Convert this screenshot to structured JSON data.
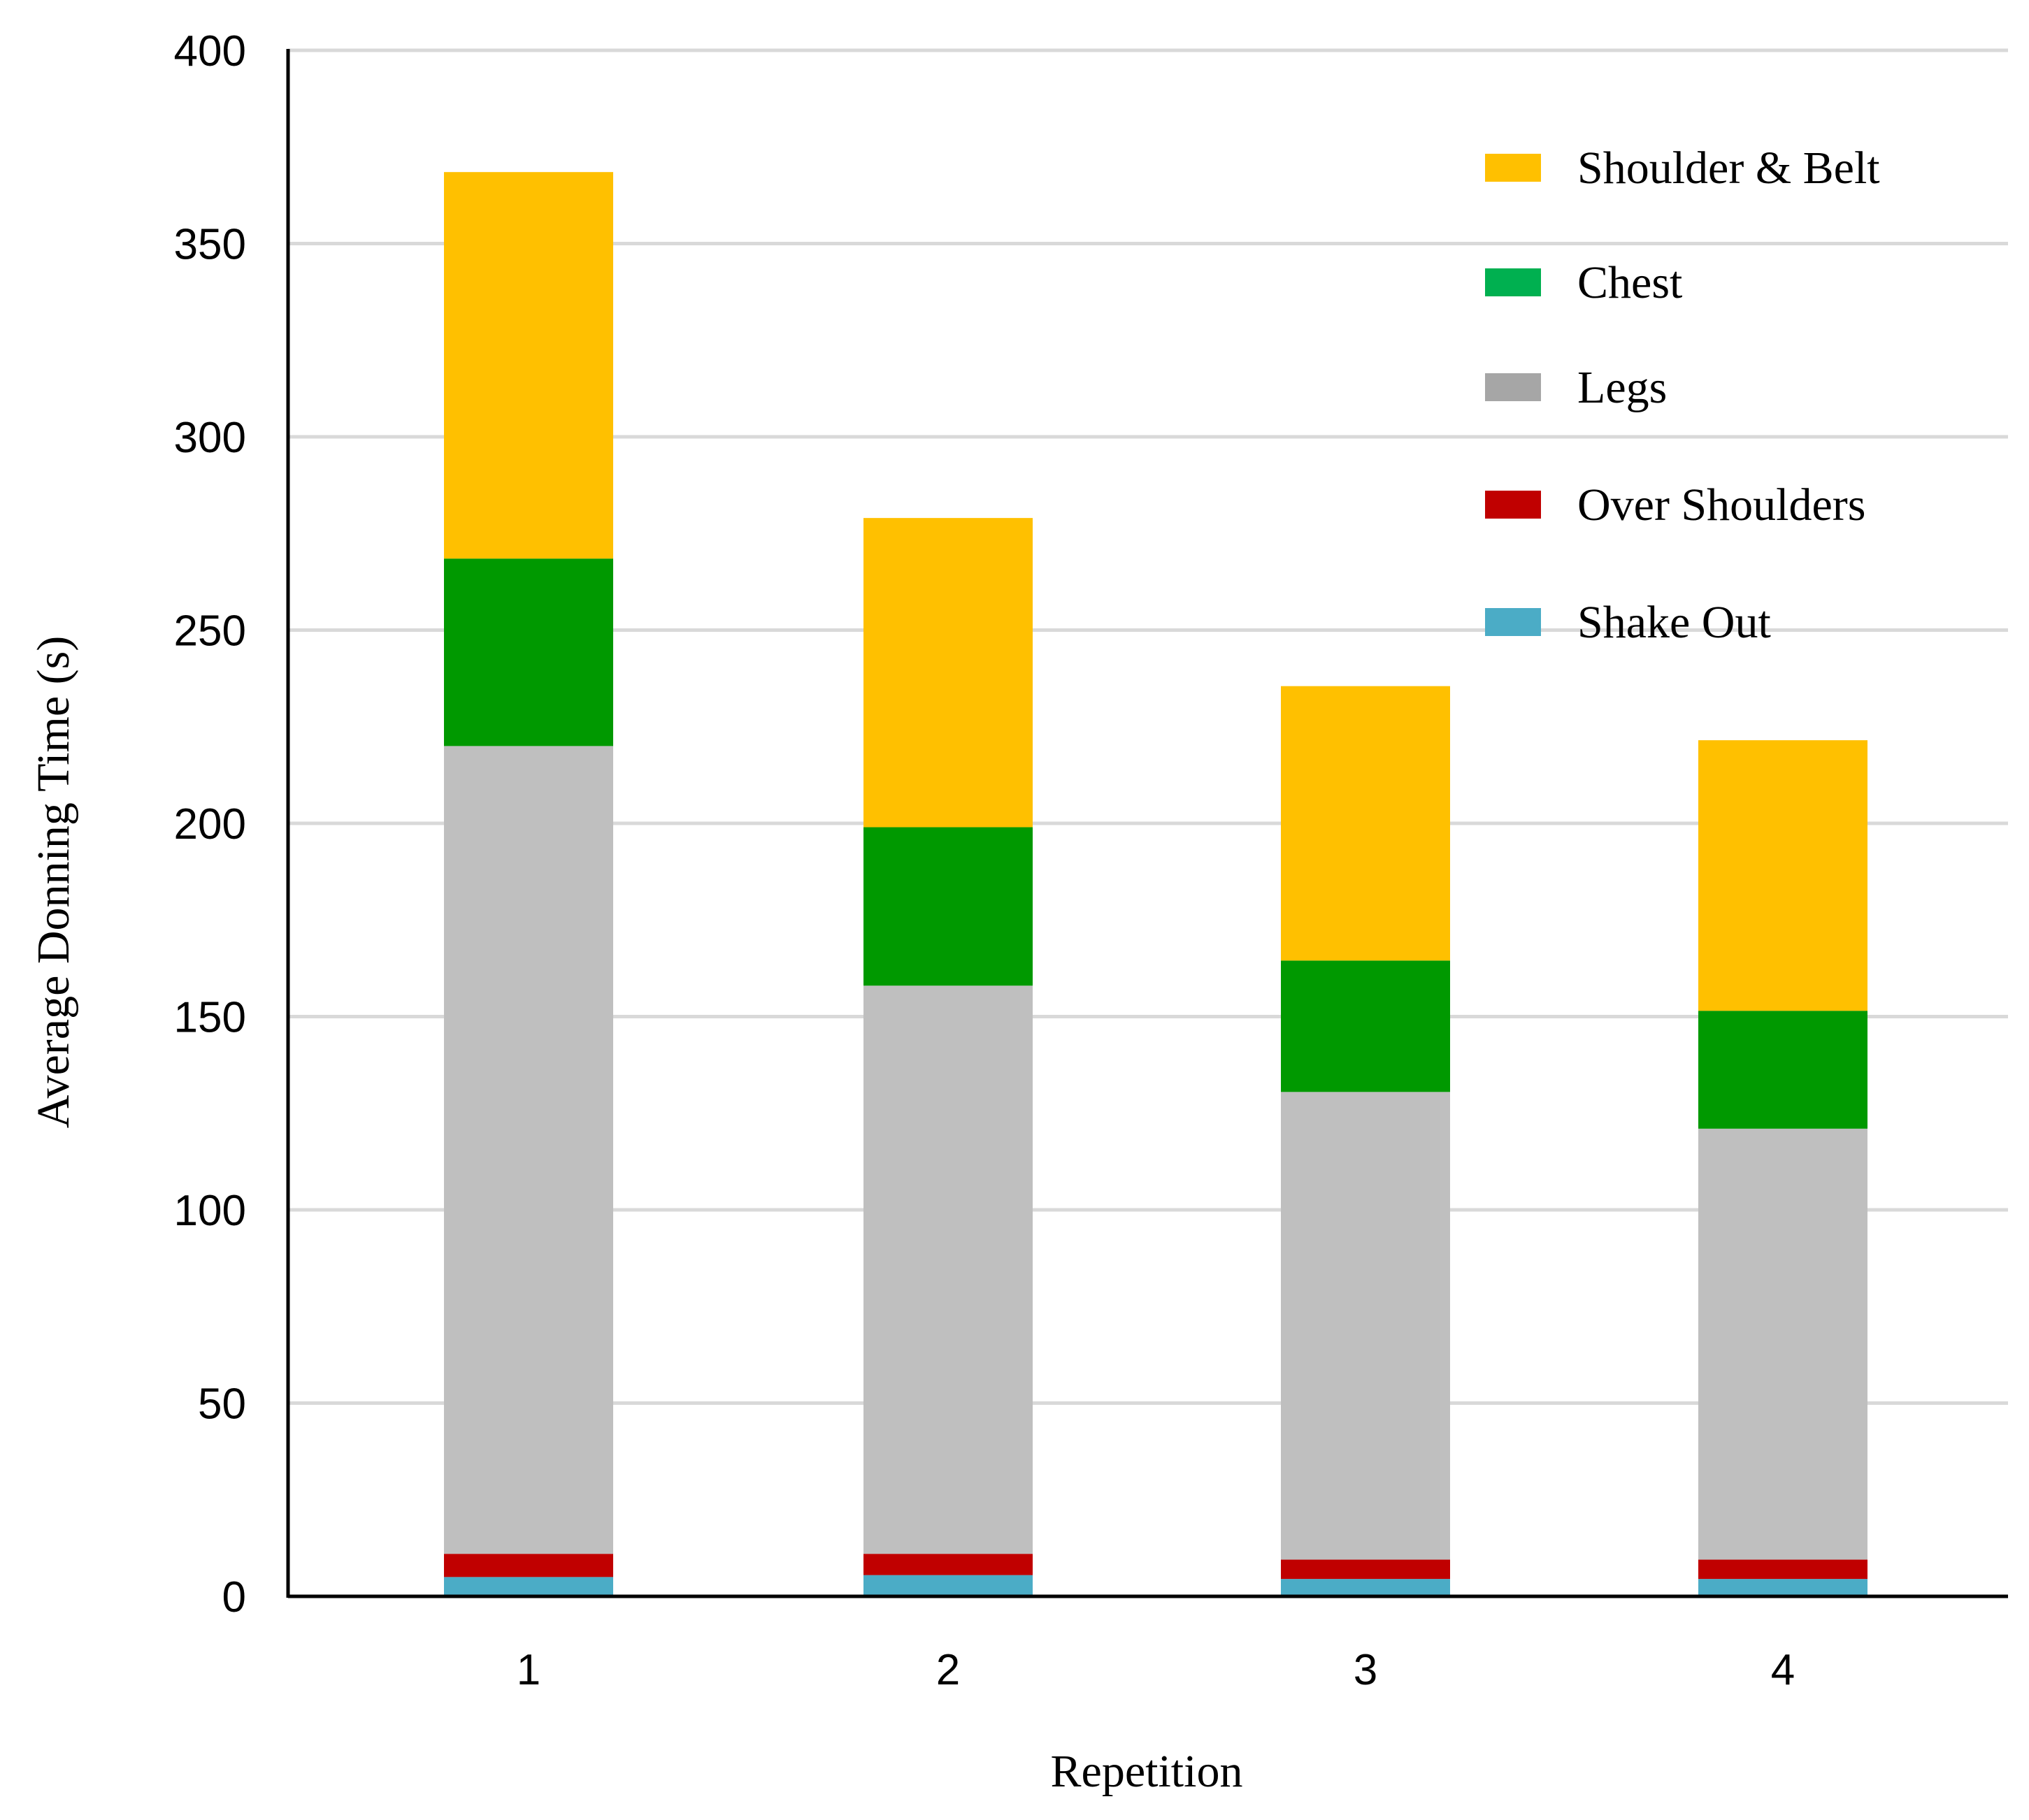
{
  "chart_data": {
    "type": "bar",
    "stacked": true,
    "categories": [
      "1",
      "2",
      "3",
      "4"
    ],
    "series": [
      {
        "name": "Shake Out",
        "color": "#4BACC6",
        "values": [
          5,
          5.5,
          4.5,
          4.5
        ]
      },
      {
        "name": "Over Shoulders",
        "color": "#C00000",
        "values": [
          6,
          5.5,
          5,
          5
        ]
      },
      {
        "name": "Legs",
        "color": "#BFBFBF",
        "values": [
          209,
          147,
          121,
          111.5
        ]
      },
      {
        "name": "Chest",
        "color": "#009900",
        "values": [
          48.5,
          41,
          34,
          30.5
        ]
      },
      {
        "name": "Shoulder & Belt",
        "color": "#FFC000",
        "values": [
          100,
          80,
          71,
          70
        ]
      }
    ],
    "legend": [
      {
        "name": "Shoulder & Belt",
        "color": "#FFC000"
      },
      {
        "name": "Chest",
        "color": "#00B050"
      },
      {
        "name": "Legs",
        "color": "#A6A6A6"
      },
      {
        "name": "Over Shoulders",
        "color": "#C00000"
      },
      {
        "name": "Shake Out",
        "color": "#4BACC6"
      }
    ],
    "title": "",
    "xlabel": "Repetition",
    "ylabel": "Average Donning Time (s)",
    "ylim": [
      0,
      400
    ],
    "yticks": [
      "0",
      "50",
      "100",
      "150",
      "200",
      "250",
      "300",
      "350",
      "400"
    ],
    "grid": true,
    "legend_position": "top-right"
  }
}
